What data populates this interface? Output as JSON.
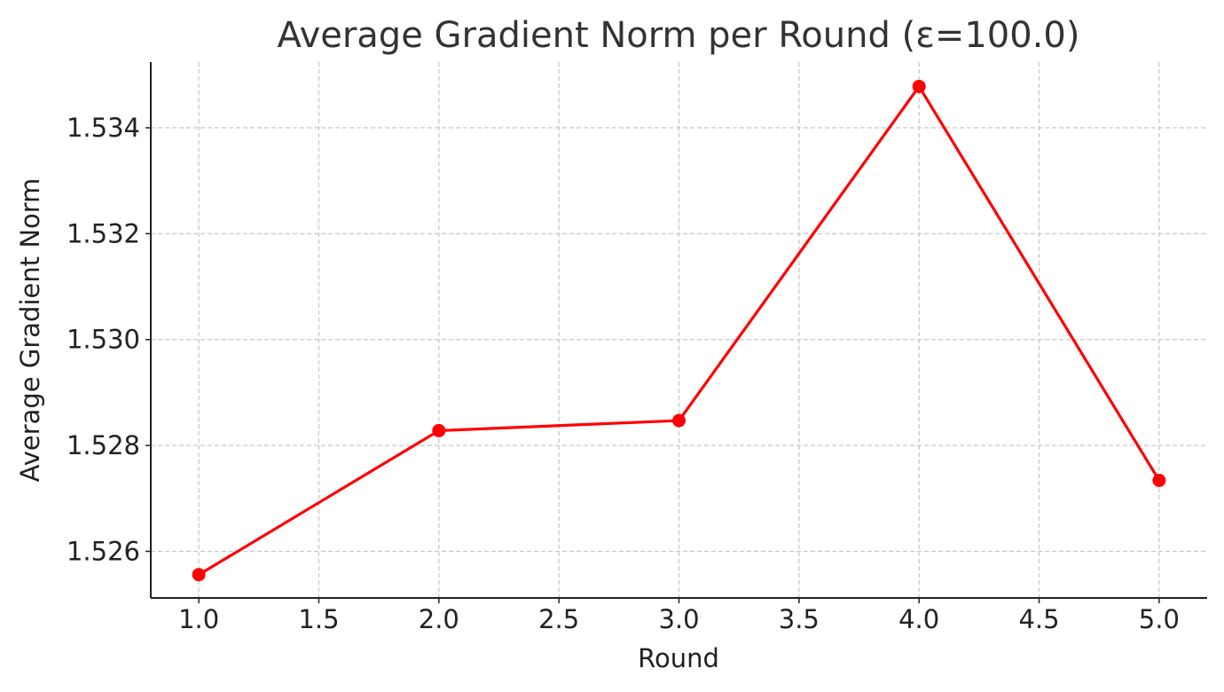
{
  "chart_data": {
    "type": "line",
    "title": "Average Gradient Norm per Round (ε=100.0)",
    "xlabel": "Round",
    "ylabel": "Average Gradient Norm",
    "x": [
      1.0,
      2.0,
      3.0,
      4.0,
      5.0
    ],
    "series": [
      {
        "values": [
          1.52556,
          1.52828,
          1.52847,
          1.53478,
          1.52734
        ],
        "color": "#ff0000",
        "marker": "circle"
      }
    ],
    "xlim": [
      0.8,
      5.2
    ],
    "ylim": [
      1.52512,
      1.53524
    ],
    "xticks": [
      "1.0",
      "1.5",
      "2.0",
      "2.5",
      "3.0",
      "3.5",
      "4.0",
      "4.5",
      "5.0"
    ],
    "xtick_values": [
      1.0,
      1.5,
      2.0,
      2.5,
      3.0,
      3.5,
      4.0,
      4.5,
      5.0
    ],
    "yticks": [
      "1.526",
      "1.528",
      "1.530",
      "1.532",
      "1.534"
    ],
    "ytick_values": [
      1.526,
      1.528,
      1.53,
      1.532,
      1.534
    ],
    "grid": true,
    "legend": "none"
  }
}
